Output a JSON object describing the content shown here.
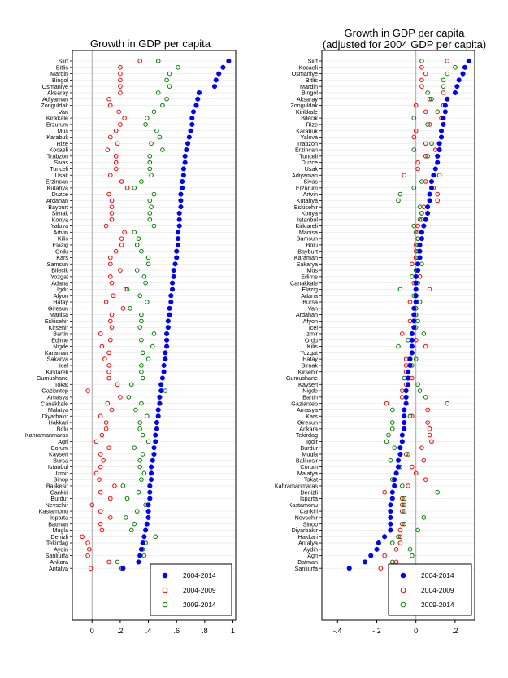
{
  "colors": {
    "blue": "#0000ff",
    "red": "#ff0000",
    "green": "#008000",
    "frame": "#000000",
    "grid": "#e6e6e6",
    "zero": "#aaaaaa"
  },
  "legend_labels": [
    "2004-2014",
    "2004-2009",
    "2009-2014"
  ],
  "chart_data": [
    {
      "type": "scatter",
      "title": "Growth in GDP per capita",
      "xlim": [
        -0.14,
        1.02
      ],
      "xticks": [
        0,
        0.2,
        0.4,
        0.6,
        0.8,
        1
      ],
      "xtick_labels": [
        "0",
        ".2",
        ".4",
        ".6",
        ".8",
        "1"
      ],
      "legend_position": "bottom-right",
      "series_names": [
        "2004-2014",
        "2004-2009",
        "2009-2014"
      ],
      "rows": [
        {
          "label": "Siirt",
          "a": 0.97,
          "b": 0.34,
          "c": 0.47
        },
        {
          "label": "Bitlis",
          "a": 0.93,
          "b": 0.2,
          "c": 0.61
        },
        {
          "label": "Mardin",
          "a": 0.9,
          "b": 0.2,
          "c": 0.55
        },
        {
          "label": "Bingol",
          "a": 0.88,
          "b": 0.2,
          "c": 0.53
        },
        {
          "label": "Osmaniye",
          "a": 0.87,
          "b": 0.2,
          "c": 0.55
        },
        {
          "label": "Aksaray",
          "a": 0.76,
          "b": 0.2,
          "c": 0.47
        },
        {
          "label": "Adiyaman",
          "a": 0.75,
          "b": 0.12,
          "c": 0.53
        },
        {
          "label": "Zonguldak",
          "a": 0.74,
          "b": 0.13,
          "c": 0.5
        },
        {
          "label": "Van",
          "a": 0.72,
          "b": 0.19,
          "c": 0.44
        },
        {
          "label": "Kirikkale",
          "a": 0.71,
          "b": 0.23,
          "c": 0.39
        },
        {
          "label": "Erzurum",
          "a": 0.71,
          "b": 0.2,
          "c": 0.38
        },
        {
          "label": "Mus",
          "a": 0.7,
          "b": 0.17,
          "c": 0.46
        },
        {
          "label": "Karabuk",
          "a": 0.69,
          "b": 0.13,
          "c": 0.48
        },
        {
          "label": "Rize",
          "a": 0.68,
          "b": 0.18,
          "c": 0.42
        },
        {
          "label": "Kocaeli",
          "a": 0.67,
          "b": 0.11,
          "c": 0.5
        },
        {
          "label": "Trabzon",
          "a": 0.66,
          "b": 0.17,
          "c": 0.41
        },
        {
          "label": "Sivas",
          "a": 0.66,
          "b": 0.17,
          "c": 0.41
        },
        {
          "label": "Tunceli",
          "a": 0.65,
          "b": 0.17,
          "c": 0.41
        },
        {
          "label": "Usak",
          "a": 0.65,
          "b": 0.13,
          "c": 0.42
        },
        {
          "label": "Erzincan",
          "a": 0.64,
          "b": 0.21,
          "c": 0.35
        },
        {
          "label": "Kutahya",
          "a": 0.64,
          "b": 0.25,
          "c": 0.3
        },
        {
          "label": "Duzce",
          "a": 0.63,
          "b": 0.12,
          "c": 0.44
        },
        {
          "label": "Ardahan",
          "a": 0.63,
          "b": 0.14,
          "c": 0.41
        },
        {
          "label": "Bayburt",
          "a": 0.63,
          "b": 0.14,
          "c": 0.42
        },
        {
          "label": "Sirnak",
          "a": 0.62,
          "b": 0.14,
          "c": 0.41
        },
        {
          "label": "Konya",
          "a": 0.62,
          "b": 0.14,
          "c": 0.41
        },
        {
          "label": "Yalova",
          "a": 0.62,
          "b": 0.1,
          "c": 0.44
        },
        {
          "label": "Artvin",
          "a": 0.61,
          "b": 0.23,
          "c": 0.3
        },
        {
          "label": "Kilis",
          "a": 0.61,
          "b": 0.21,
          "c": 0.33
        },
        {
          "label": "Elazig",
          "a": 0.61,
          "b": 0.21,
          "c": 0.32
        },
        {
          "label": "Ordu",
          "a": 0.6,
          "b": 0.17,
          "c": 0.35
        },
        {
          "label": "Kars",
          "a": 0.6,
          "b": 0.13,
          "c": 0.4
        },
        {
          "label": "Samsun",
          "a": 0.59,
          "b": 0.13,
          "c": 0.4
        },
        {
          "label": "Bilecik",
          "a": 0.58,
          "b": 0.2,
          "c": 0.32
        },
        {
          "label": "Yozgat",
          "a": 0.58,
          "b": 0.13,
          "c": 0.37
        },
        {
          "label": "Adana",
          "a": 0.57,
          "b": 0.14,
          "c": 0.38
        },
        {
          "label": "Igdir",
          "a": 0.57,
          "b": 0.24,
          "c": 0.25
        },
        {
          "label": "Afyon",
          "a": 0.56,
          "b": 0.15,
          "c": 0.34
        },
        {
          "label": "Hatay",
          "a": 0.56,
          "b": 0.1,
          "c": 0.39
        },
        {
          "label": "Giresun",
          "a": 0.55,
          "b": 0.22,
          "c": 0.27
        },
        {
          "label": "Manisa",
          "a": 0.55,
          "b": 0.14,
          "c": 0.35
        },
        {
          "label": "Eskisehir",
          "a": 0.54,
          "b": 0.13,
          "c": 0.35
        },
        {
          "label": "Kirsehir",
          "a": 0.54,
          "b": 0.14,
          "c": 0.34
        },
        {
          "label": "Bartin",
          "a": 0.53,
          "b": 0.06,
          "c": 0.44
        },
        {
          "label": "Edirne",
          "a": 0.53,
          "b": 0.13,
          "c": 0.35
        },
        {
          "label": "Nigde",
          "a": 0.53,
          "b": 0.07,
          "c": 0.43
        },
        {
          "label": "Karaman",
          "a": 0.52,
          "b": 0.12,
          "c": 0.36
        },
        {
          "label": "Sakarya",
          "a": 0.52,
          "b": 0.09,
          "c": 0.4
        },
        {
          "label": "Icel",
          "a": 0.51,
          "b": 0.12,
          "c": 0.35
        },
        {
          "label": "Kirklareli",
          "a": 0.51,
          "b": 0.12,
          "c": 0.35
        },
        {
          "label": "Gumushane",
          "a": 0.5,
          "b": 0.12,
          "c": 0.36
        },
        {
          "label": "Tokat",
          "a": 0.49,
          "b": 0.18,
          "c": 0.28
        },
        {
          "label": "Gaziantep",
          "a": 0.49,
          "b": -0.03,
          "c": 0.52
        },
        {
          "label": "Amasya",
          "a": 0.48,
          "b": 0.2,
          "c": 0.26
        },
        {
          "label": "Canakkale",
          "a": 0.48,
          "b": 0.11,
          "c": 0.35
        },
        {
          "label": "Malatya",
          "a": 0.47,
          "b": 0.14,
          "c": 0.31
        },
        {
          "label": "Diyarbakir",
          "a": 0.47,
          "b": 0.06,
          "c": 0.39
        },
        {
          "label": "Hakkari",
          "a": 0.46,
          "b": 0.1,
          "c": 0.34
        },
        {
          "label": "Bolu",
          "a": 0.46,
          "b": 0.1,
          "c": 0.34
        },
        {
          "label": "Kahramanmaras",
          "a": 0.45,
          "b": 0.07,
          "c": 0.36
        },
        {
          "label": "Agri",
          "a": 0.45,
          "b": 0.03,
          "c": 0.4
        },
        {
          "label": "Corum",
          "a": 0.44,
          "b": 0.12,
          "c": 0.3
        },
        {
          "label": "Kayseri",
          "a": 0.44,
          "b": 0.06,
          "c": 0.36
        },
        {
          "label": "Bursa",
          "a": 0.43,
          "b": 0.08,
          "c": 0.34
        },
        {
          "label": "Istanbul",
          "a": 0.42,
          "b": 0.06,
          "c": 0.34
        },
        {
          "label": "Izmir",
          "a": 0.42,
          "b": 0.03,
          "c": 0.37
        },
        {
          "label": "Sinop",
          "a": 0.42,
          "b": 0.05,
          "c": 0.35
        },
        {
          "label": "Balikesir",
          "a": 0.41,
          "b": 0.16,
          "c": 0.22
        },
        {
          "label": "Cankiri",
          "a": 0.41,
          "b": 0.06,
          "c": 0.33
        },
        {
          "label": "Burdur",
          "a": 0.41,
          "b": 0.13,
          "c": 0.25
        },
        {
          "label": "Nevsehir",
          "a": 0.4,
          "b": 0.0,
          "c": 0.38
        },
        {
          "label": "Kastamonu",
          "a": 0.4,
          "b": 0.06,
          "c": 0.32
        },
        {
          "label": "Isparta",
          "a": 0.4,
          "b": 0.13,
          "c": 0.24
        },
        {
          "label": "Batman",
          "a": 0.39,
          "b": 0.06,
          "c": 0.3
        },
        {
          "label": "Mugla",
          "a": 0.38,
          "b": 0.07,
          "c": 0.28
        },
        {
          "label": "Denizli",
          "a": 0.37,
          "b": -0.07,
          "c": 0.45
        },
        {
          "label": "Tekirdag",
          "a": 0.36,
          "b": -0.03,
          "c": 0.38
        },
        {
          "label": "Aydin",
          "a": 0.35,
          "b": -0.02,
          "c": 0.36
        },
        {
          "label": "Sanliurfa",
          "a": 0.34,
          "b": -0.03,
          "c": 0.37
        },
        {
          "label": "Ankara",
          "a": 0.33,
          "b": 0.12,
          "c": 0.18
        },
        {
          "label": "Antalya",
          "a": 0.22,
          "b": -0.01,
          "c": 0.21
        }
      ]
    },
    {
      "type": "scatter",
      "title": "Growth in GDP per capita",
      "subtitle": "(adjusted for 2004 GDP per capita)",
      "xlim": [
        -0.48,
        0.3
      ],
      "xticks": [
        -0.4,
        -0.2,
        0,
        0.2
      ],
      "xtick_labels": [
        "-.4",
        "-.2",
        "0",
        ".2"
      ],
      "legend_position": "bottom-right",
      "series_names": [
        "2004-2014",
        "2004-2009",
        "2009-2014"
      ],
      "rows": [
        {
          "label": "Siirt",
          "a": 0.27,
          "b": 0.16,
          "c": 0.03
        },
        {
          "label": "Kocaeli",
          "a": 0.25,
          "b": 0.03,
          "c": 0.2
        },
        {
          "label": "Osmaniye",
          "a": 0.24,
          "b": 0.05,
          "c": 0.16
        },
        {
          "label": "Bitlis",
          "a": 0.22,
          "b": 0.03,
          "c": 0.14
        },
        {
          "label": "Mardin",
          "a": 0.21,
          "b": 0.03,
          "c": 0.14
        },
        {
          "label": "Bingol",
          "a": 0.2,
          "b": 0.14,
          "c": 0.06
        },
        {
          "label": "Aksaray",
          "a": 0.16,
          "b": 0.07,
          "c": 0.08
        },
        {
          "label": "Zonguldak",
          "a": 0.15,
          "b": 0.0,
          "c": 0.14
        },
        {
          "label": "Kirikkale",
          "a": 0.15,
          "b": 0.05,
          "c": 0.11
        },
        {
          "label": "Bilecik",
          "a": 0.14,
          "b": 0.13,
          "c": -0.01
        },
        {
          "label": "Rize",
          "a": 0.14,
          "b": 0.07,
          "c": 0.06
        },
        {
          "label": "Karabuk",
          "a": 0.13,
          "b": 0.0,
          "c": 0.13
        },
        {
          "label": "Yalova",
          "a": 0.13,
          "b": -0.01,
          "c": 0.13
        },
        {
          "label": "Trabzon",
          "a": 0.12,
          "b": 0.05,
          "c": 0.08
        },
        {
          "label": "Erzincan",
          "a": 0.12,
          "b": 0.1,
          "c": -0.01
        },
        {
          "label": "Tunceli",
          "a": 0.11,
          "b": 0.05,
          "c": 0.06
        },
        {
          "label": "Duzce",
          "a": 0.11,
          "b": 0.01,
          "c": 0.11
        },
        {
          "label": "Usak",
          "a": 0.1,
          "b": 0.01,
          "c": 0.1
        },
        {
          "label": "Adiyaman",
          "a": 0.09,
          "b": -0.06,
          "c": 0.12
        },
        {
          "label": "Sivas",
          "a": 0.08,
          "b": 0.05,
          "c": 0.03
        },
        {
          "label": "Erzurum",
          "a": 0.08,
          "b": 0.09,
          "c": -0.01
        },
        {
          "label": "Artvin",
          "a": 0.07,
          "b": 0.11,
          "c": -0.08
        },
        {
          "label": "Kutahya",
          "a": 0.07,
          "b": 0.11,
          "c": -0.09
        },
        {
          "label": "Eskisehir",
          "a": 0.06,
          "b": 0.04,
          "c": 0.02
        },
        {
          "label": "Konya",
          "a": 0.06,
          "b": 0.03,
          "c": 0.03
        },
        {
          "label": "Istanbul",
          "a": 0.05,
          "b": 0.03,
          "c": 0.02
        },
        {
          "label": "Kirklareli",
          "a": 0.04,
          "b": 0.01,
          "c": -0.01
        },
        {
          "label": "Manisa",
          "a": 0.03,
          "b": 0.01,
          "c": 0.0
        },
        {
          "label": "Samsun",
          "a": 0.03,
          "b": 0.01,
          "c": 0.01
        },
        {
          "label": "Bolu",
          "a": 0.02,
          "b": 0.0,
          "c": 0.01
        },
        {
          "label": "Bayburt",
          "a": 0.02,
          "b": 0.0,
          "c": 0.01
        },
        {
          "label": "Karaman",
          "a": 0.02,
          "b": 0.0,
          "c": 0.01
        },
        {
          "label": "Sakarya",
          "a": 0.01,
          "b": -0.02,
          "c": 0.03
        },
        {
          "label": "Mus",
          "a": 0.01,
          "b": 0.0,
          "c": 0.0
        },
        {
          "label": "Edirne",
          "a": 0.0,
          "b": 0.02,
          "c": -0.02
        },
        {
          "label": "Canakkale",
          "a": 0.0,
          "b": -0.01,
          "c": 0.01
        },
        {
          "label": "Elazig",
          "a": 0.0,
          "b": 0.07,
          "c": -0.08
        },
        {
          "label": "Adana",
          "a": 0.0,
          "b": 0.0,
          "c": -0.01
        },
        {
          "label": "Bursa",
          "a": 0.0,
          "b": -0.03,
          "c": 0.02
        },
        {
          "label": "Van",
          "a": -0.01,
          "b": 0.0,
          "c": 0.0
        },
        {
          "label": "Ardahan",
          "a": -0.01,
          "b": 0.0,
          "c": 0.0
        },
        {
          "label": "Afyon",
          "a": -0.01,
          "b": -0.03,
          "c": 0.01
        },
        {
          "label": "Icel",
          "a": -0.01,
          "b": -0.01,
          "c": 0.0
        },
        {
          "label": "Izmir",
          "a": -0.02,
          "b": -0.07,
          "c": 0.04
        },
        {
          "label": "Ordu",
          "a": -0.02,
          "b": 0.0,
          "c": -0.04
        },
        {
          "label": "Kilis",
          "a": -0.02,
          "b": 0.05,
          "c": -0.09
        },
        {
          "label": "Yozgat",
          "a": -0.02,
          "b": -0.02,
          "c": -0.02
        },
        {
          "label": "Hatay",
          "a": -0.03,
          "b": -0.05,
          "c": 0.0
        },
        {
          "label": "Sirnak",
          "a": -0.03,
          "b": -0.05,
          "c": -0.02
        },
        {
          "label": "Kirsehir",
          "a": -0.04,
          "b": -0.05,
          "c": -0.04
        },
        {
          "label": "Gumushane",
          "a": -0.04,
          "b": -0.02,
          "c": -0.06
        },
        {
          "label": "Kayseri",
          "a": -0.04,
          "b": -0.05,
          "c": 0.01
        },
        {
          "label": "Nigde",
          "a": -0.05,
          "b": -0.07,
          "c": 0.02
        },
        {
          "label": "Bartin",
          "a": -0.05,
          "b": -0.07,
          "c": 0.05
        },
        {
          "label": "Gaziantep",
          "a": -0.05,
          "b": -0.15,
          "c": 0.16
        },
        {
          "label": "Amasya",
          "a": -0.06,
          "b": 0.06,
          "c": -0.12
        },
        {
          "label": "Kars",
          "a": -0.06,
          "b": -0.02,
          "c": -0.03
        },
        {
          "label": "Giresun",
          "a": -0.06,
          "b": 0.06,
          "c": -0.12
        },
        {
          "label": "Ankara",
          "a": -0.06,
          "b": 0.07,
          "c": -0.12
        },
        {
          "label": "Tekirdag",
          "a": -0.07,
          "b": 0.07,
          "c": -0.14
        },
        {
          "label": "Igdir",
          "a": -0.07,
          "b": 0.08,
          "c": -0.15
        },
        {
          "label": "Burdur",
          "a": -0.08,
          "b": 0.03,
          "c": -0.11
        },
        {
          "label": "Mugla",
          "a": -0.08,
          "b": -0.05,
          "c": -0.04
        },
        {
          "label": "Balikesir",
          "a": -0.09,
          "b": 0.04,
          "c": -0.13
        },
        {
          "label": "Corum",
          "a": -0.09,
          "b": -0.02,
          "c": -0.08
        },
        {
          "label": "Malatya",
          "a": -0.1,
          "b": 0.0,
          "c": -0.1
        },
        {
          "label": "Tokat",
          "a": -0.11,
          "b": 0.05,
          "c": -0.12
        },
        {
          "label": "Kahramanmaras",
          "a": -0.11,
          "b": -0.04,
          "c": -0.07
        },
        {
          "label": "Denizli",
          "a": -0.12,
          "b": -0.16,
          "c": 0.11
        },
        {
          "label": "Isparta",
          "a": -0.12,
          "b": -0.07,
          "c": -0.06
        },
        {
          "label": "Kastamonu",
          "a": -0.13,
          "b": -0.07,
          "c": -0.06
        },
        {
          "label": "Cankiri",
          "a": -0.13,
          "b": -0.07,
          "c": -0.06
        },
        {
          "label": "Nevsehir",
          "a": -0.13,
          "b": -0.13,
          "c": 0.04
        },
        {
          "label": "Sinop",
          "a": -0.13,
          "b": -0.07,
          "c": -0.06
        },
        {
          "label": "Diyarbakir",
          "a": -0.13,
          "b": -0.08,
          "c": 0.01
        },
        {
          "label": "Hakkari",
          "a": -0.16,
          "b": -0.08,
          "c": -0.09
        },
        {
          "label": "Antalya",
          "a": -0.19,
          "b": -0.08,
          "c": -0.12
        },
        {
          "label": "Aydin",
          "a": -0.2,
          "b": -0.1,
          "c": -0.03
        },
        {
          "label": "Agri",
          "a": -0.23,
          "b": -0.16,
          "c": -0.02
        },
        {
          "label": "Batman",
          "a": -0.26,
          "b": -0.1,
          "c": -0.12
        },
        {
          "label": "Sanliurfa",
          "a": -0.34,
          "b": -0.18,
          "c": -0.07
        }
      ]
    }
  ]
}
